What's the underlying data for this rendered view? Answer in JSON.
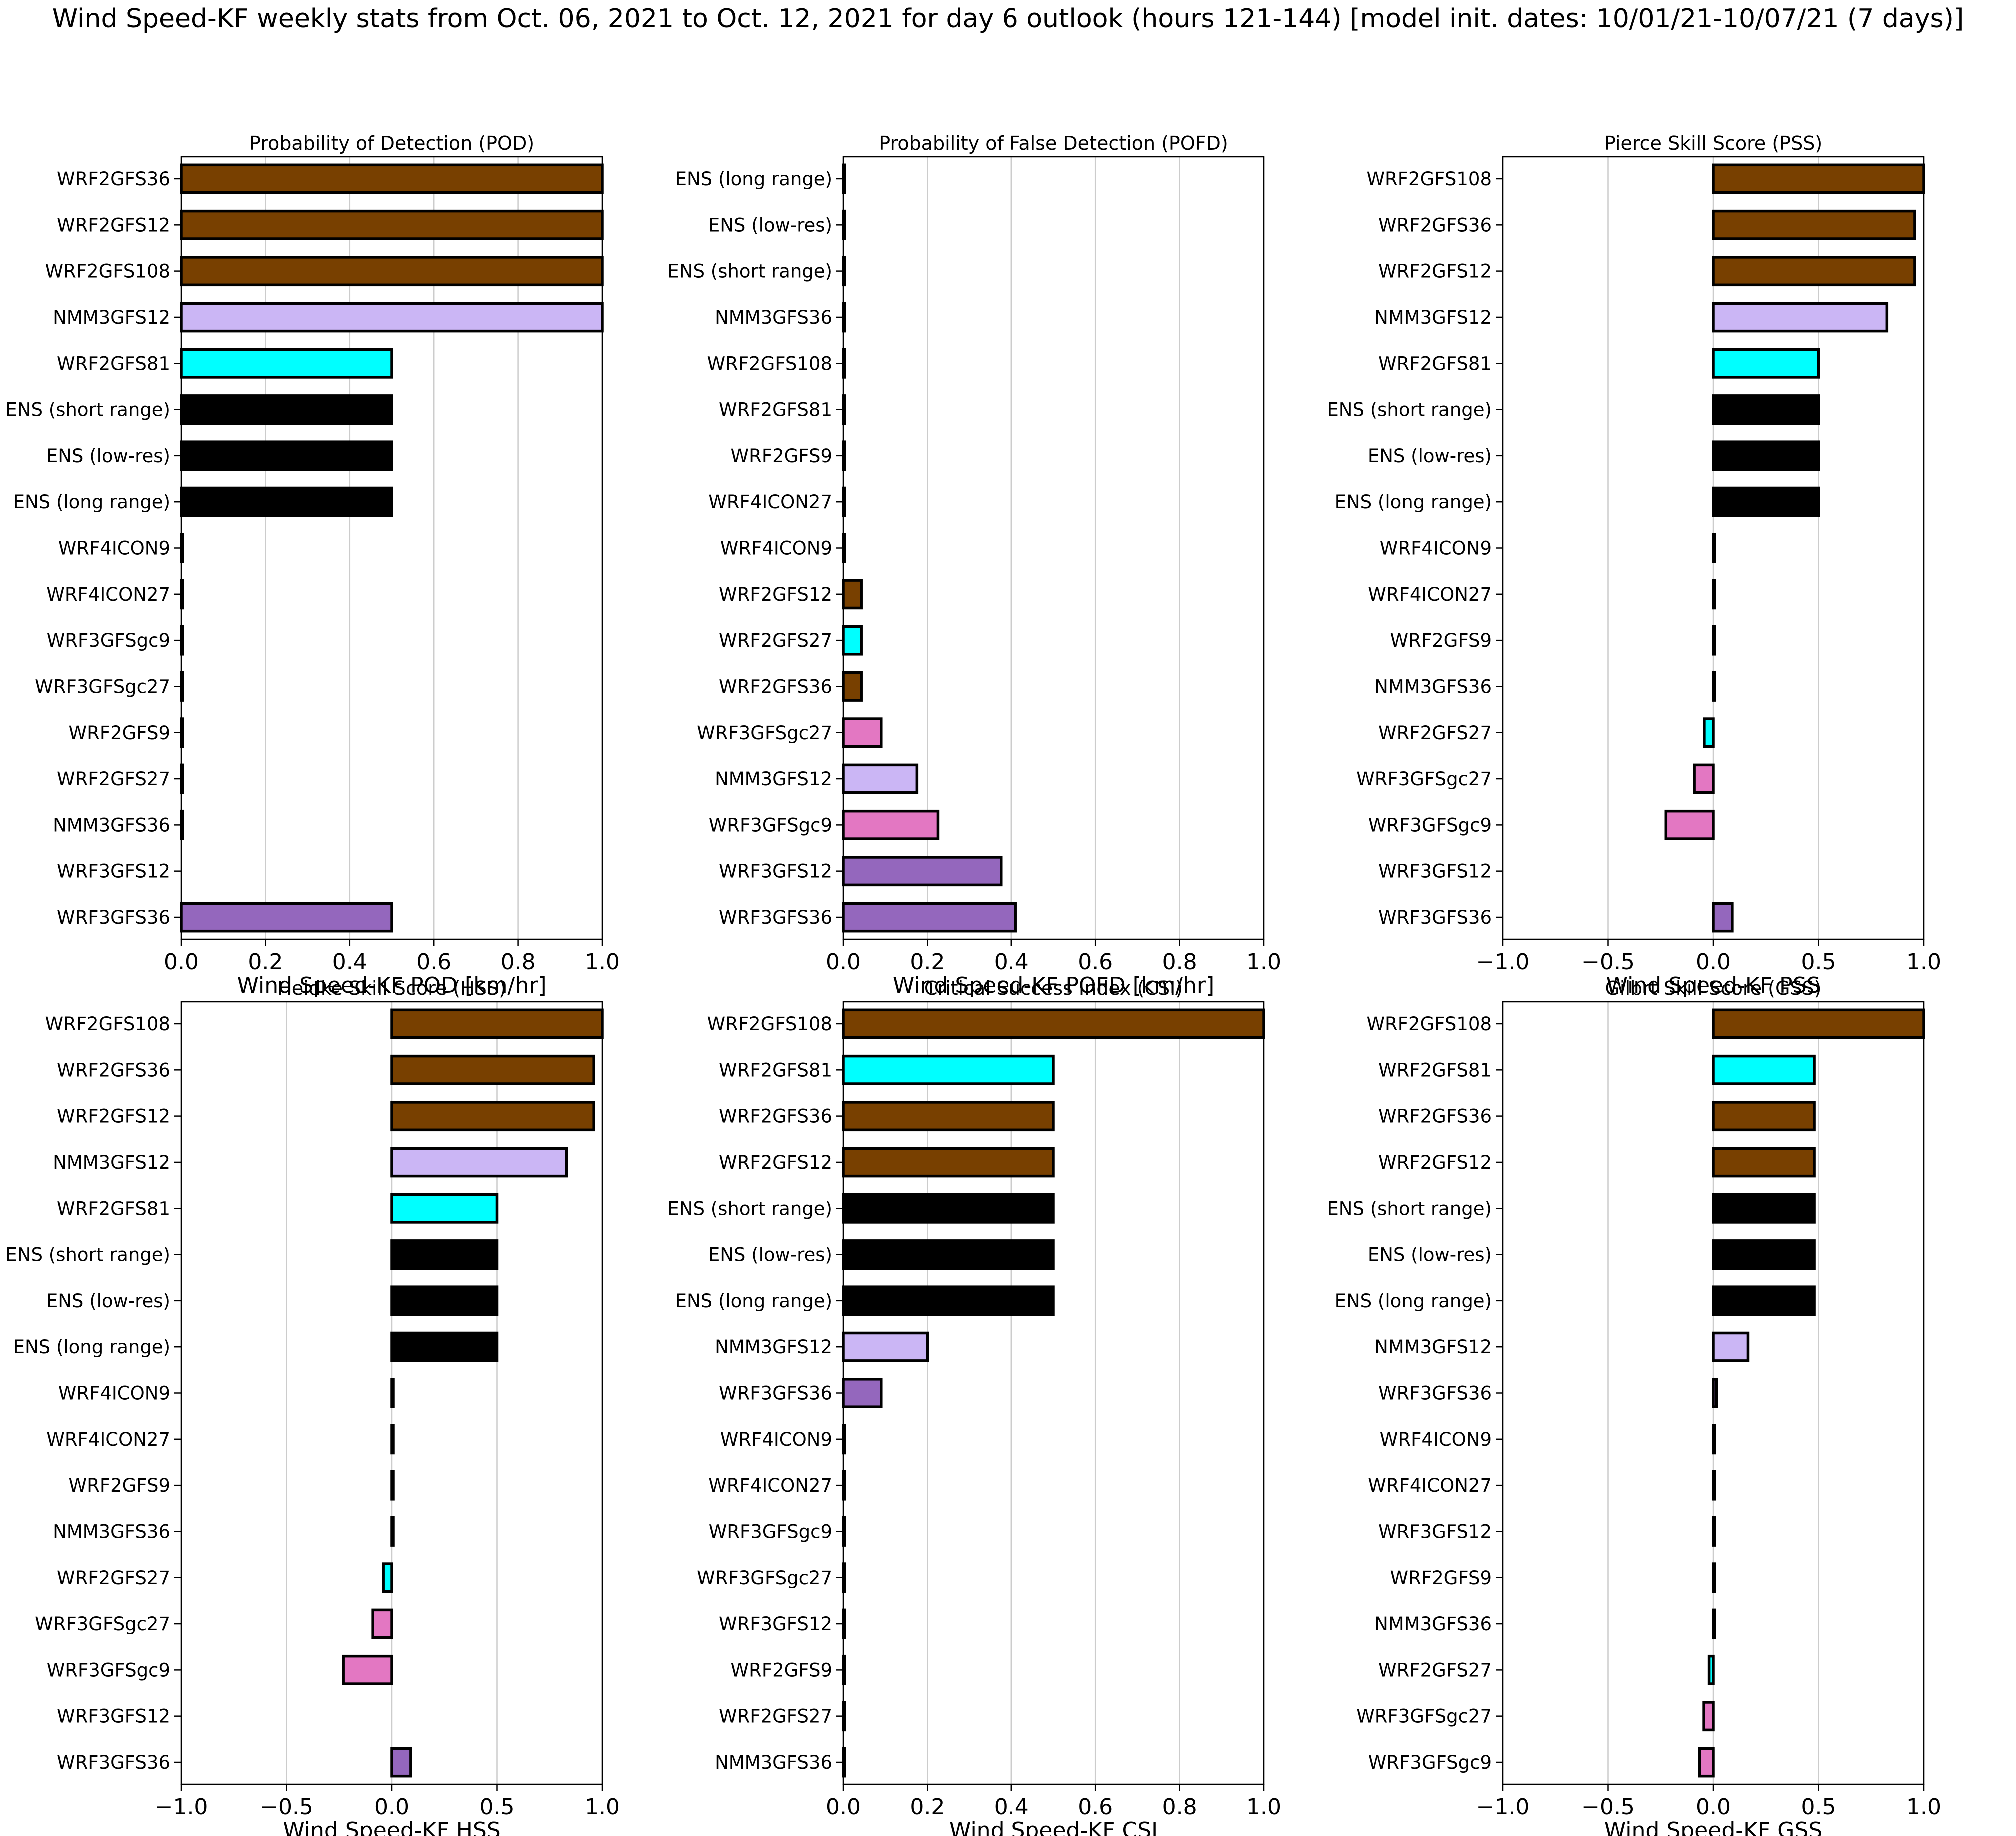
{
  "figure": {
    "suptitle": "Wind Speed-KF  weekly stats from Oct. 06, 2021 to Oct. 12, 2021 for day 6 outlook (hours 121-144)  [model init. dates: 10/01/21-10/07/21 (7 days)]"
  },
  "colors": {
    "WRF2GFS": "#784000",
    "NMM3GFS": "#cbb6f5",
    "WRF2GFS_cyan": "#00ffff",
    "ENS": "#000000",
    "WRF3GFSgc": "#e377c2",
    "WRF3GFS": "#9467bd",
    "edge": "#000000",
    "grid": "#cccccc"
  },
  "chart_data": [
    {
      "type": "bar",
      "orientation": "horizontal",
      "title": "Probability of Detection (POD)",
      "xlabel": "Wind Speed-KF  POD [km/hr]",
      "xlim": [
        0,
        1
      ],
      "xticks": [
        "0.0",
        "0.2",
        "0.4",
        "0.6",
        "0.8",
        "1.0"
      ],
      "grid": "x",
      "categories": [
        "WRF2GFS36",
        "WRF2GFS12",
        "WRF2GFS108",
        "NMM3GFS12",
        "WRF2GFS81",
        "ENS (short range)",
        "ENS (low-res)",
        "ENS (long range)",
        "WRF4ICON9",
        "WRF4ICON27",
        "WRF3GFSgc9",
        "WRF3GFSgc27",
        "WRF2GFS9",
        "WRF2GFS27",
        "NMM3GFS36",
        "WRF3GFS12",
        "WRF3GFS36"
      ],
      "values": [
        1.0,
        1.0,
        1.0,
        1.0,
        0.5,
        0.5,
        0.5,
        0.5,
        0,
        0,
        0,
        0,
        0,
        0,
        0,
        null,
        0.5
      ],
      "bar_colors": [
        "#784000",
        "#784000",
        "#784000",
        "#cbb6f5",
        "#00ffff",
        "#000000",
        "#000000",
        "#000000",
        "#784000",
        "#784000",
        "#e377c2",
        "#e377c2",
        "#784000",
        "#00ffff",
        "#cbb6f5",
        "#9467bd",
        "#9467bd"
      ]
    },
    {
      "type": "bar",
      "orientation": "horizontal",
      "title": "Probability of False Detection (POFD)",
      "xlabel": "Wind Speed-KF  POFD [km/hr]",
      "xlim": [
        0,
        1
      ],
      "xticks": [
        "0.0",
        "0.2",
        "0.4",
        "0.6",
        "0.8",
        "1.0"
      ],
      "grid": "x",
      "categories": [
        "ENS (long range)",
        "ENS (low-res)",
        "ENS (short range)",
        "NMM3GFS36",
        "WRF2GFS108",
        "WRF2GFS81",
        "WRF2GFS9",
        "WRF4ICON27",
        "WRF4ICON9",
        "WRF2GFS12",
        "WRF2GFS27",
        "WRF2GFS36",
        "WRF3GFSgc27",
        "NMM3GFS12",
        "WRF3GFSgc9",
        "WRF3GFS12",
        "WRF3GFS36"
      ],
      "values": [
        0,
        0,
        0,
        0,
        0,
        0,
        0,
        0,
        0,
        0.043,
        0.043,
        0.043,
        0.09,
        0.175,
        0.225,
        0.375,
        0.41
      ],
      "bar_colors": [
        "#000000",
        "#000000",
        "#000000",
        "#cbb6f5",
        "#784000",
        "#00ffff",
        "#784000",
        "#784000",
        "#784000",
        "#784000",
        "#00ffff",
        "#784000",
        "#e377c2",
        "#cbb6f5",
        "#e377c2",
        "#9467bd",
        "#9467bd"
      ]
    },
    {
      "type": "bar",
      "orientation": "horizontal",
      "title": "Pierce Skill Score (PSS)",
      "xlabel": "Wind Speed-KF  PSS",
      "xlim": [
        -1,
        1
      ],
      "xticks": [
        "−1.0",
        "−0.5",
        "0.0",
        "0.5",
        "1.0"
      ],
      "grid": "x",
      "categories": [
        "WRF2GFS108",
        "WRF2GFS36",
        "WRF2GFS12",
        "NMM3GFS12",
        "WRF2GFS81",
        "ENS (short range)",
        "ENS (low-res)",
        "ENS (long range)",
        "WRF4ICON9",
        "WRF4ICON27",
        "WRF2GFS9",
        "NMM3GFS36",
        "WRF2GFS27",
        "WRF3GFSgc27",
        "WRF3GFSgc9",
        "WRF3GFS12",
        "WRF3GFS36"
      ],
      "values": [
        1.0,
        0.957,
        0.957,
        0.825,
        0.5,
        0.5,
        0.5,
        0.5,
        0,
        0,
        0,
        0,
        -0.043,
        -0.09,
        -0.225,
        null,
        0.09
      ],
      "bar_colors": [
        "#784000",
        "#784000",
        "#784000",
        "#cbb6f5",
        "#00ffff",
        "#000000",
        "#000000",
        "#000000",
        "#784000",
        "#784000",
        "#784000",
        "#cbb6f5",
        "#00ffff",
        "#e377c2",
        "#e377c2",
        "#9467bd",
        "#9467bd"
      ]
    },
    {
      "type": "bar",
      "orientation": "horizontal",
      "title": "Heidke Skill Score (HSS)",
      "xlabel": "Wind Speed-KF  HSS",
      "xlim": [
        -1,
        1
      ],
      "xticks": [
        "−1.0",
        "−0.5",
        "0.0",
        "0.5",
        "1.0"
      ],
      "grid": "x",
      "categories": [
        "WRF2GFS108",
        "WRF2GFS36",
        "WRF2GFS12",
        "NMM3GFS12",
        "WRF2GFS81",
        "ENS (short range)",
        "ENS (low-res)",
        "ENS (long range)",
        "WRF4ICON9",
        "WRF4ICON27",
        "WRF2GFS9",
        "NMM3GFS36",
        "WRF2GFS27",
        "WRF3GFSgc27",
        "WRF3GFSgc9",
        "WRF3GFS12",
        "WRF3GFS36"
      ],
      "values": [
        1.0,
        0.96,
        0.96,
        0.83,
        0.5,
        0.5,
        0.5,
        0.5,
        0,
        0,
        0,
        0,
        -0.04,
        -0.09,
        -0.23,
        null,
        0.09
      ],
      "bar_colors": [
        "#784000",
        "#784000",
        "#784000",
        "#cbb6f5",
        "#00ffff",
        "#000000",
        "#000000",
        "#000000",
        "#784000",
        "#784000",
        "#784000",
        "#cbb6f5",
        "#00ffff",
        "#e377c2",
        "#e377c2",
        "#9467bd",
        "#9467bd"
      ]
    },
    {
      "type": "bar",
      "orientation": "horizontal",
      "title": "Critical Success Index (CSI)",
      "xlabel": "Wind Speed-KF  CSI",
      "xlim": [
        0,
        1
      ],
      "xticks": [
        "0.0",
        "0.2",
        "0.4",
        "0.6",
        "0.8",
        "1.0"
      ],
      "grid": "x",
      "categories": [
        "WRF2GFS108",
        "WRF2GFS81",
        "WRF2GFS36",
        "WRF2GFS12",
        "ENS (short range)",
        "ENS (low-res)",
        "ENS (long range)",
        "NMM3GFS12",
        "WRF3GFS36",
        "WRF4ICON9",
        "WRF4ICON27",
        "WRF3GFSgc9",
        "WRF3GFSgc27",
        "WRF3GFS12",
        "WRF2GFS9",
        "WRF2GFS27",
        "NMM3GFS36"
      ],
      "values": [
        1.0,
        0.5,
        0.5,
        0.5,
        0.5,
        0.5,
        0.5,
        0.2,
        0.09,
        0,
        0,
        0,
        0,
        0,
        0,
        0,
        0
      ],
      "bar_colors": [
        "#784000",
        "#00ffff",
        "#784000",
        "#784000",
        "#000000",
        "#000000",
        "#000000",
        "#cbb6f5",
        "#9467bd",
        "#784000",
        "#784000",
        "#e377c2",
        "#e377c2",
        "#9467bd",
        "#784000",
        "#00ffff",
        "#cbb6f5"
      ]
    },
    {
      "type": "bar",
      "orientation": "horizontal",
      "title": "Gilbrt Skill Score (GSS)",
      "xlabel": "Wind Speed-KF  GSS",
      "xlim": [
        -1,
        1
      ],
      "xticks": [
        "−1.0",
        "−0.5",
        "0.0",
        "0.5",
        "1.0"
      ],
      "grid": "x",
      "categories": [
        "WRF2GFS108",
        "WRF2GFS81",
        "WRF2GFS36",
        "WRF2GFS12",
        "ENS (short range)",
        "ENS (low-res)",
        "ENS (long range)",
        "NMM3GFS12",
        "WRF3GFS36",
        "WRF4ICON9",
        "WRF4ICON27",
        "WRF3GFS12",
        "WRF2GFS9",
        "NMM3GFS36",
        "WRF2GFS27",
        "WRF3GFSgc27",
        "WRF3GFSgc9"
      ],
      "values": [
        1.0,
        0.48,
        0.48,
        0.48,
        0.48,
        0.48,
        0.48,
        0.165,
        0.015,
        0,
        0,
        0,
        0,
        0,
        -0.02,
        -0.045,
        -0.065
      ],
      "bar_colors": [
        "#784000",
        "#00ffff",
        "#784000",
        "#784000",
        "#000000",
        "#000000",
        "#000000",
        "#cbb6f5",
        "#9467bd",
        "#784000",
        "#784000",
        "#9467bd",
        "#784000",
        "#cbb6f5",
        "#00ffff",
        "#e377c2",
        "#e377c2"
      ]
    }
  ]
}
